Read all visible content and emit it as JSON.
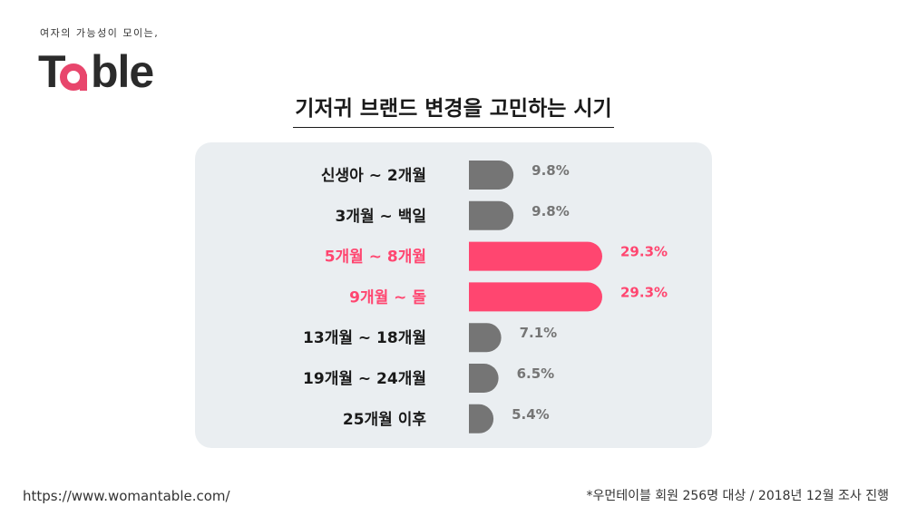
{
  "brand": {
    "tagline": "여자의 가능성이 모이는,",
    "logo_t": "T",
    "logo_rest": "ble"
  },
  "colors": {
    "highlight": "#ff4670",
    "bar_default": "#757575",
    "label_default": "#1a1a1a",
    "value_default": "#757575"
  },
  "chart_data": {
    "type": "bar",
    "orientation": "horizontal",
    "title": "기저귀 브랜드 변경을 고민하는 시기",
    "categories": [
      "신생아 ~ 2개월",
      "3개월 ~ 백일",
      "5개월 ~ 8개월",
      "9개월 ~ 돌",
      "13개월 ~ 18개월",
      "19개월 ~ 24개월",
      "25개월 이후"
    ],
    "values": [
      9.8,
      9.8,
      29.3,
      29.3,
      7.1,
      6.5,
      5.4
    ],
    "value_labels": [
      "9.8%",
      "9.8%",
      "29.3%",
      "29.3%",
      "7.1%",
      "6.5%",
      "5.4%"
    ],
    "highlighted": [
      false,
      false,
      true,
      true,
      false,
      false,
      false
    ],
    "unit": "%",
    "xlim": [
      0,
      29.3
    ],
    "grid": false,
    "legend": "none"
  },
  "footer": {
    "url": "https://www.womantable.com/",
    "note": "*우먼테이블 회원 256명 대상 / 2018년 12월 조사 진행"
  }
}
